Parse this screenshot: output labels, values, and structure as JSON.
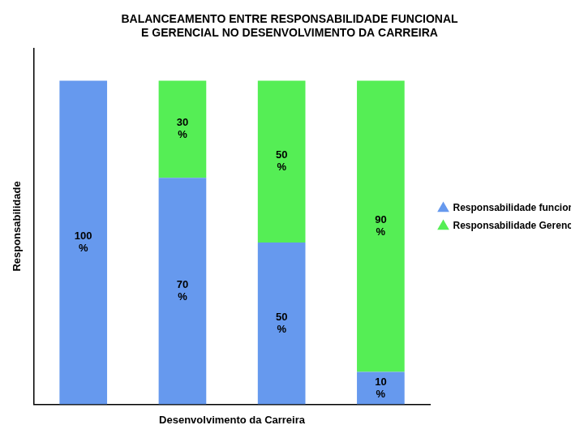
{
  "chart_data": {
    "type": "bar",
    "title": "BALANCEAMENTO ENTRE RESPONSABILIDADE FUNCIONAL\nE GERENCIAL NO DESENVOLVIMENTO DA CARREIRA",
    "x_label": "Desenvolvimento da Carreira",
    "y_label": "Responsabilidade",
    "categories": [
      null,
      null,
      null,
      null
    ],
    "series": [
      {
        "name": "Responsabilidade funcional",
        "color": "#6699EE",
        "values": [
          100,
          70,
          50,
          10
        ],
        "value_labels": [
          "100\n%",
          "70\n%",
          "50\n%",
          "10\n%"
        ]
      },
      {
        "name": "Responsabilidade Gerencial",
        "color": "#55EE55",
        "values": [
          null,
          30,
          50,
          90
        ],
        "value_labels": [
          null,
          "30\n%",
          "50\n%",
          "90\n%"
        ]
      }
    ],
    "stacked": true,
    "data_labels": true,
    "ylim": [
      0,
      110
    ],
    "grid": false,
    "tick_labels": false,
    "legend": "right"
  }
}
